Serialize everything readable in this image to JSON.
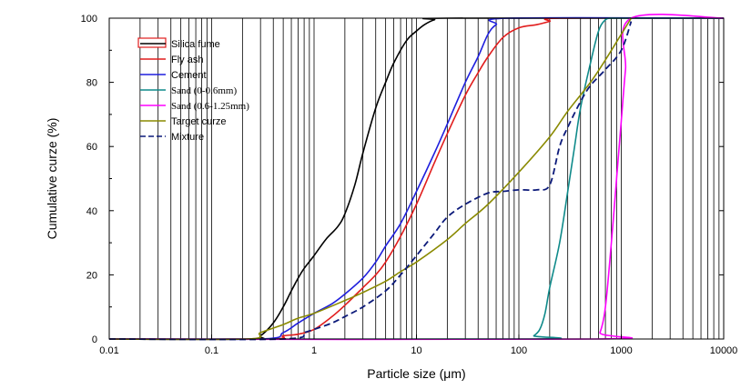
{
  "chart_data": {
    "type": "line",
    "title": "",
    "xlabel": "Particle size (μm)",
    "ylabel": "Cumulative curze (%)",
    "xscale": "log",
    "xlim": [
      0.01,
      10000
    ],
    "ylim": [
      0,
      100
    ],
    "grid": "vertical lines at every log-decade minor tick",
    "x_ticks": [
      0.01,
      0.1,
      1,
      10,
      100,
      1000,
      10000
    ],
    "x_tick_labels": [
      "0.01",
      "0.1",
      "1",
      "10",
      "100",
      "1000",
      "10000"
    ],
    "y_ticks": [
      0,
      20,
      40,
      60,
      80,
      100
    ],
    "y_tick_labels": [
      "0",
      "20",
      "40",
      "60",
      "80",
      "100"
    ],
    "legend_position": "top-left",
    "series": [
      {
        "name": "Silica fume",
        "color": "#000000",
        "dash": "solid",
        "x": [
          0.01,
          0.24,
          0.3,
          0.4,
          0.5,
          0.6,
          0.7,
          0.8,
          1.0,
          1.3,
          1.7,
          2.0,
          2.5,
          3.0,
          4.0,
          5.0,
          6.0,
          8.0,
          10,
          12,
          15,
          20,
          10000
        ],
        "y": [
          0,
          0,
          1,
          5,
          10,
          15,
          19,
          22,
          26,
          31,
          35,
          39,
          48,
          58,
          72,
          80,
          86,
          93,
          96,
          98,
          99.5,
          100,
          100
        ]
      },
      {
        "name": "Fly ash",
        "color": "#e11d1d",
        "dash": "solid",
        "x": [
          0.01,
          0.35,
          0.5,
          0.7,
          1.0,
          1.5,
          2.0,
          3.0,
          4.0,
          5.0,
          7.0,
          10,
          15,
          20,
          30,
          40,
          50,
          70,
          100,
          150,
          200,
          250,
          10000
        ],
        "y": [
          0,
          0,
          1,
          1.5,
          3,
          7,
          10.5,
          16,
          20,
          24,
          32,
          42,
          55,
          64,
          76,
          83,
          88,
          94,
          97,
          98,
          99,
          100,
          100
        ]
      },
      {
        "name": "Cement",
        "color": "#1f1fdd",
        "dash": "solid",
        "x": [
          0.01,
          0.3,
          0.5,
          0.7,
          1.0,
          1.5,
          2.0,
          3.0,
          4.0,
          5.0,
          7.0,
          10,
          15,
          20,
          30,
          40,
          50,
          60,
          80,
          10000
        ],
        "y": [
          0,
          0,
          2,
          5,
          8,
          11,
          14,
          19,
          24,
          29,
          36,
          46,
          58,
          67,
          80,
          88,
          95,
          98,
          100,
          100
        ]
      },
      {
        "name": "Sand (0-0.6mm)",
        "color": "#0f8a8a",
        "dash": "solid",
        "x": [
          0.01,
          125,
          140,
          160,
          180,
          200,
          250,
          300,
          350,
          400,
          500,
          600,
          700,
          800,
          1000,
          10000
        ],
        "y": [
          0,
          0,
          1,
          3,
          8,
          16,
          30,
          46,
          60,
          72,
          86,
          96,
          99.5,
          100,
          100,
          100
        ]
      },
      {
        "name": "Sand (0.6-1.25mm)",
        "color": "#ff00ff",
        "dash": "solid",
        "x": [
          0.01,
          550,
          620,
          700,
          800,
          900,
          1000,
          1100,
          1250,
          10000
        ],
        "y": [
          0,
          0,
          2,
          10,
          30,
          50,
          68,
          84,
          100,
          100
        ]
      },
      {
        "name": "Target curze",
        "color": "#8a8a00",
        "dash": "solid",
        "x": [
          0.01,
          0.22,
          0.3,
          0.5,
          0.7,
          1.0,
          2.0,
          3.0,
          5.0,
          7.0,
          10,
          20,
          30,
          50,
          100,
          200,
          300,
          500,
          700,
          1000,
          1250
        ],
        "y": [
          0,
          0,
          2,
          4.5,
          6.5,
          8,
          12,
          14.5,
          18,
          21,
          24,
          31,
          36,
          42,
          52,
          63,
          71,
          80,
          87,
          95,
          100
        ]
      },
      {
        "name": "Mixture",
        "color": "#0c1a7a",
        "dash": "dashed",
        "x": [
          0.01,
          0.5,
          0.8,
          1.0,
          1.5,
          2.0,
          3.0,
          5.0,
          7.0,
          10,
          15,
          20,
          30,
          50,
          70,
          100,
          150,
          200,
          250,
          300,
          400,
          500,
          700,
          1000,
          1250
        ],
        "y": [
          0,
          0,
          2,
          3,
          5,
          7,
          10,
          15,
          20,
          26,
          33,
          38,
          42,
          45.5,
          46,
          46.5,
          46.5,
          48,
          60,
          66,
          74,
          79,
          84,
          90,
          99
        ]
      }
    ]
  }
}
